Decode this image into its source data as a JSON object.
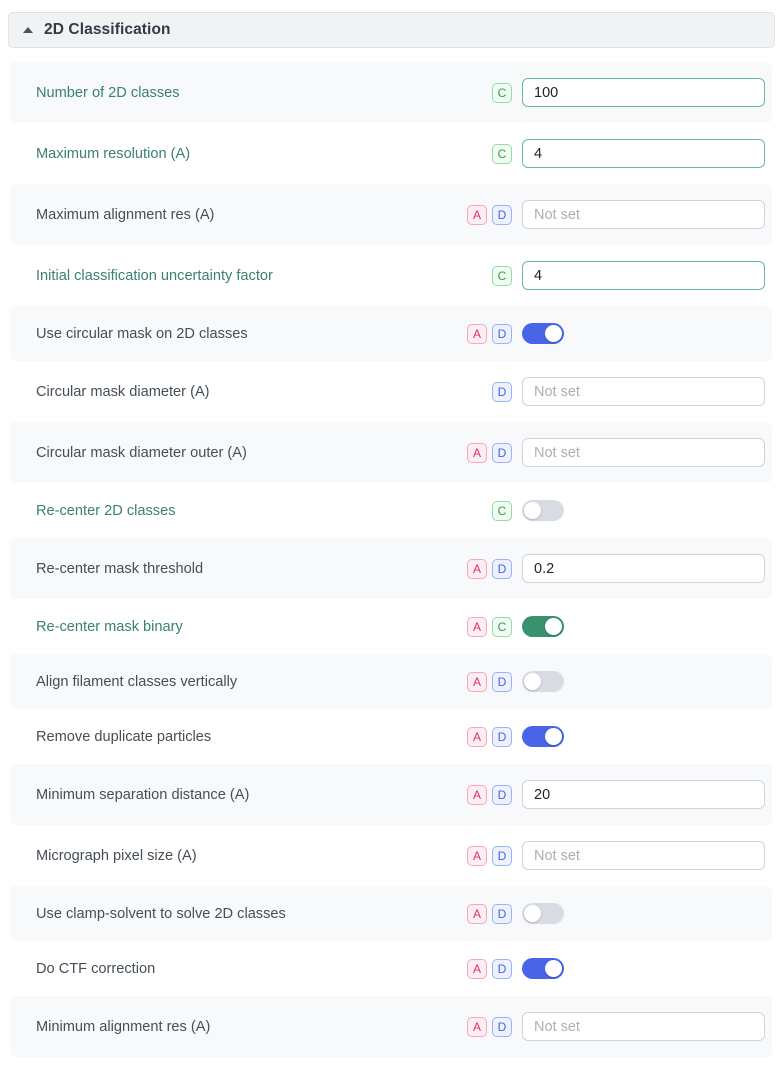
{
  "panel": {
    "title": "2D Classification",
    "collapse_icon": "caret-up-icon"
  },
  "colors": {
    "modified_label": "#3a8073",
    "default_label": "#454e57",
    "badge_a_color": "#d6336c",
    "badge_d_color": "#4263eb",
    "badge_c_color": "#2f9e44",
    "toggle_on_blue": "#4a64e8",
    "toggle_on_green": "#38926d",
    "toggle_off_gray": "#d8dce2",
    "modified_input_border": "#67bd8b",
    "row_alt_background": "#f8f9fa",
    "header_background": "#f0f2f4"
  },
  "parameters": [
    {
      "label": "Number of 2D classes",
      "modified": true,
      "badges": [
        "C"
      ],
      "background": "gray",
      "control": {
        "type": "input",
        "value": "100",
        "placeholder": "",
        "modified": true
      }
    },
    {
      "label": "Maximum resolution (A)",
      "modified": true,
      "badges": [
        "C"
      ],
      "background": "white",
      "control": {
        "type": "input",
        "value": "4",
        "placeholder": "",
        "modified": true
      }
    },
    {
      "label": "Maximum alignment res (A)",
      "modified": false,
      "badges": [
        "A",
        "D"
      ],
      "background": "gray",
      "control": {
        "type": "input",
        "value": "",
        "placeholder": "Not set",
        "modified": false
      }
    },
    {
      "label": "Initial classification uncertainty factor",
      "modified": true,
      "badges": [
        "C"
      ],
      "background": "white",
      "control": {
        "type": "input",
        "value": "4",
        "placeholder": "",
        "modified": true
      }
    },
    {
      "label": "Use circular mask on 2D classes",
      "modified": false,
      "badges": [
        "A",
        "D"
      ],
      "background": "gray",
      "control": {
        "type": "toggle",
        "state": "on",
        "variant": "blue"
      }
    },
    {
      "label": "Circular mask diameter (A)",
      "modified": false,
      "badges": [
        "D"
      ],
      "background": "white",
      "control": {
        "type": "input",
        "value": "",
        "placeholder": "Not set",
        "modified": false
      }
    },
    {
      "label": "Circular mask diameter outer (A)",
      "modified": false,
      "badges": [
        "A",
        "D"
      ],
      "background": "gray",
      "control": {
        "type": "input",
        "value": "",
        "placeholder": "Not set",
        "modified": false
      }
    },
    {
      "label": "Re-center 2D classes",
      "modified": true,
      "badges": [
        "C"
      ],
      "background": "white",
      "control": {
        "type": "toggle",
        "state": "off",
        "variant": "gray"
      }
    },
    {
      "label": "Re-center mask threshold",
      "modified": false,
      "badges": [
        "A",
        "D"
      ],
      "background": "gray",
      "control": {
        "type": "input",
        "value": "0.2",
        "placeholder": "",
        "modified": false
      }
    },
    {
      "label": "Re-center mask binary",
      "modified": true,
      "badges": [
        "A",
        "C"
      ],
      "background": "white",
      "control": {
        "type": "toggle",
        "state": "on",
        "variant": "green"
      }
    },
    {
      "label": "Align filament classes vertically",
      "modified": false,
      "badges": [
        "A",
        "D"
      ],
      "background": "gray",
      "control": {
        "type": "toggle",
        "state": "off",
        "variant": "gray"
      }
    },
    {
      "label": "Remove duplicate particles",
      "modified": false,
      "badges": [
        "A",
        "D"
      ],
      "background": "white",
      "control": {
        "type": "toggle",
        "state": "on",
        "variant": "blue"
      }
    },
    {
      "label": "Minimum separation distance (A)",
      "modified": false,
      "badges": [
        "A",
        "D"
      ],
      "background": "gray",
      "control": {
        "type": "input",
        "value": "20",
        "placeholder": "",
        "modified": false
      }
    },
    {
      "label": "Micrograph pixel size (A)",
      "modified": false,
      "badges": [
        "A",
        "D"
      ],
      "background": "white",
      "control": {
        "type": "input",
        "value": "",
        "placeholder": "Not set",
        "modified": false
      }
    },
    {
      "label": "Use clamp-solvent to solve 2D classes",
      "modified": false,
      "badges": [
        "A",
        "D"
      ],
      "background": "gray",
      "control": {
        "type": "toggle",
        "state": "off",
        "variant": "gray"
      }
    },
    {
      "label": "Do CTF correction",
      "modified": false,
      "badges": [
        "A",
        "D"
      ],
      "background": "white",
      "control": {
        "type": "toggle",
        "state": "on",
        "variant": "blue"
      }
    },
    {
      "label": "Minimum alignment res (A)",
      "modified": false,
      "badges": [
        "A",
        "D"
      ],
      "background": "gray",
      "control": {
        "type": "input",
        "value": "",
        "placeholder": "Not set",
        "modified": false
      }
    }
  ]
}
